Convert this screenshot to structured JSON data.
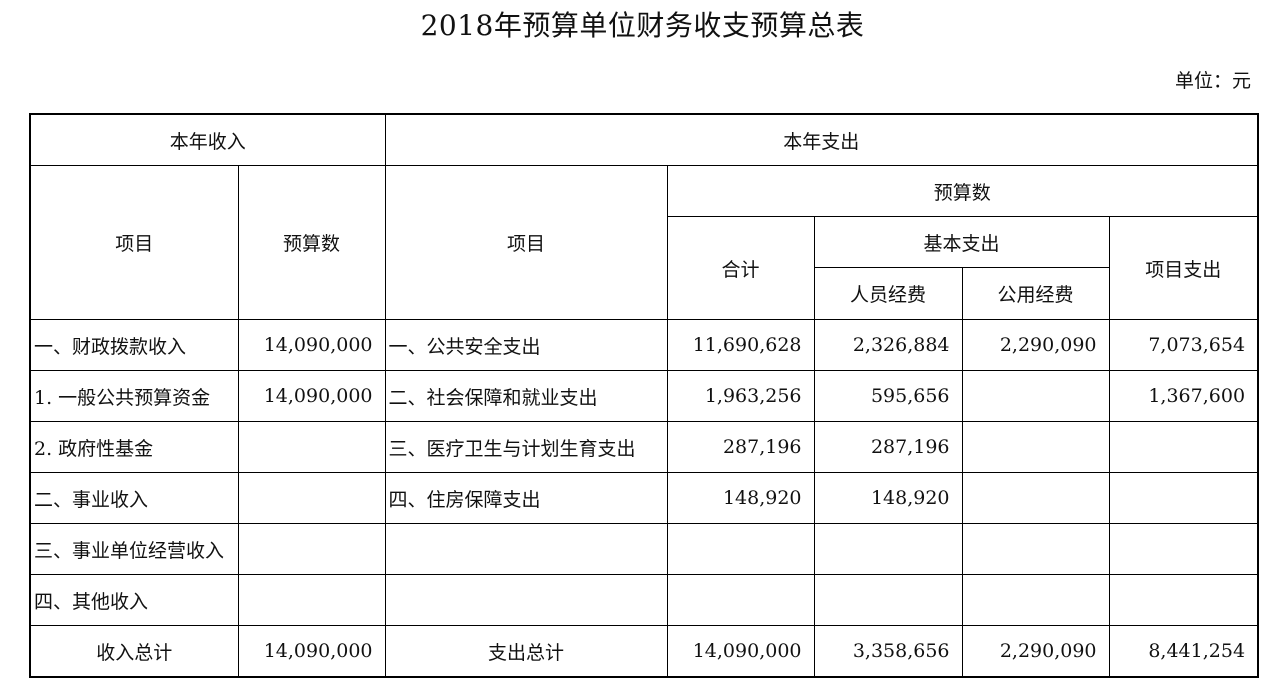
{
  "title": "2018年预算单位财务收支预算总表",
  "unit": "单位：元",
  "headers": {
    "income": "本年收入",
    "expense": "本年支出",
    "item": "项目",
    "budget_num": "预算数",
    "exp_item": "项目",
    "exp_budget": "预算数",
    "total": "合计",
    "basic": "基本支出",
    "personnel": "人员经费",
    "public": "公用经费",
    "project": "项目支出"
  },
  "rows": [
    {
      "inc_item": "一、财政拨款收入",
      "inc_amount": "14,090,000",
      "exp_item": "一、公共安全支出",
      "total": "11,690,628",
      "personnel": "2,326,884",
      "public": "2,290,090",
      "project": "7,073,654"
    },
    {
      "inc_item": "1.  一般公共预算资金",
      "inc_amount": "14,090,000",
      "exp_item": "二、社会保障和就业支出",
      "total": "1,963,256",
      "personnel": "595,656",
      "public": "",
      "project": "1,367,600"
    },
    {
      "inc_item": "2.  政府性基金",
      "inc_amount": "",
      "exp_item": "三、医疗卫生与计划生育支出",
      "total": "287,196",
      "personnel": "287,196",
      "public": "",
      "project": ""
    },
    {
      "inc_item": "二、事业收入",
      "inc_amount": "",
      "exp_item": "四、住房保障支出",
      "total": "148,920",
      "personnel": "148,920",
      "public": "",
      "project": ""
    },
    {
      "inc_item": "三、事业单位经营收入",
      "inc_amount": "",
      "exp_item": "",
      "total": "",
      "personnel": "",
      "public": "",
      "project": ""
    },
    {
      "inc_item": "四、其他收入",
      "inc_amount": "",
      "exp_item": "",
      "total": "",
      "personnel": "",
      "public": "",
      "project": ""
    }
  ],
  "totals": {
    "inc_label": "收入总计",
    "inc_amount": "14,090,000",
    "exp_label": "支出总计",
    "total": "14,090,000",
    "personnel": "3,358,656",
    "public": "2,290,090",
    "project": "8,441,254"
  }
}
